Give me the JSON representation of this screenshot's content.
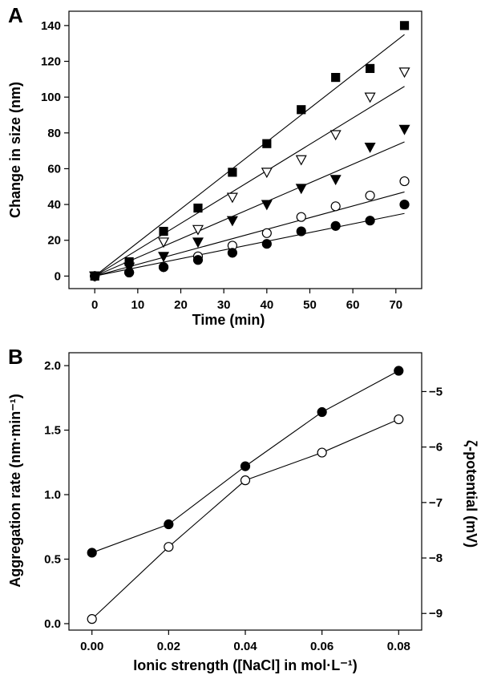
{
  "chart_data": [
    {
      "panel": "A",
      "type": "scatter",
      "xlabel": "Time (min)",
      "ylabel": "Change in size (nm)",
      "xlim": [
        -6,
        76
      ],
      "ylim": [
        -7,
        148
      ],
      "xticks": [
        0,
        10,
        20,
        30,
        40,
        50,
        60,
        70
      ],
      "yticks": [
        0,
        20,
        40,
        60,
        80,
        100,
        120,
        140
      ],
      "series": [
        {
          "name": "filled-square",
          "marker": "square-filled",
          "points": [
            [
              0,
              0
            ],
            [
              8,
              8
            ],
            [
              16,
              25
            ],
            [
              24,
              38
            ],
            [
              32,
              58
            ],
            [
              40,
              74
            ],
            [
              48,
              93
            ],
            [
              56,
              111
            ],
            [
              64,
              116
            ],
            [
              72,
              140
            ]
          ],
          "fit": [
            [
              0,
              0
            ],
            [
              72,
              135
            ]
          ]
        },
        {
          "name": "open-triangle-down",
          "marker": "triangle-down-open",
          "points": [
            [
              0,
              0
            ],
            [
              8,
              5
            ],
            [
              16,
              19
            ],
            [
              24,
              26
            ],
            [
              32,
              44
            ],
            [
              40,
              58
            ],
            [
              48,
              65
            ],
            [
              56,
              79
            ],
            [
              64,
              100
            ],
            [
              72,
              114
            ]
          ],
          "fit": [
            [
              0,
              0
            ],
            [
              72,
              106
            ]
          ]
        },
        {
          "name": "filled-triangle-down",
          "marker": "triangle-down-filled",
          "points": [
            [
              0,
              0
            ],
            [
              8,
              5
            ],
            [
              16,
              11
            ],
            [
              24,
              19
            ],
            [
              32,
              31
            ],
            [
              40,
              40
            ],
            [
              48,
              49
            ],
            [
              56,
              54
            ],
            [
              64,
              72
            ],
            [
              72,
              82
            ]
          ],
          "fit": [
            [
              0,
              0
            ],
            [
              72,
              75
            ]
          ]
        },
        {
          "name": "open-circle",
          "marker": "circle-open",
          "points": [
            [
              0,
              0
            ],
            [
              8,
              2
            ],
            [
              16,
              5
            ],
            [
              24,
              11
            ],
            [
              32,
              17
            ],
            [
              40,
              24
            ],
            [
              48,
              33
            ],
            [
              56,
              39
            ],
            [
              64,
              45
            ],
            [
              72,
              53
            ]
          ],
          "fit": [
            [
              0,
              0
            ],
            [
              72,
              47
            ]
          ]
        },
        {
          "name": "filled-circle",
          "marker": "circle-filled",
          "points": [
            [
              0,
              0
            ],
            [
              8,
              2
            ],
            [
              16,
              5
            ],
            [
              24,
              9
            ],
            [
              32,
              13
            ],
            [
              40,
              18
            ],
            [
              48,
              25
            ],
            [
              56,
              28
            ],
            [
              64,
              31
            ],
            [
              72,
              40
            ]
          ],
          "fit": [
            [
              0,
              0
            ],
            [
              72,
              35
            ]
          ]
        }
      ]
    },
    {
      "panel": "B",
      "type": "line",
      "xlabel": "Ionic strength ([NaCl] in mol·L⁻¹)",
      "ylabel": "Aggregation rate (nm·min⁻¹)",
      "y2label": "ζ-potential (mV)",
      "xlim": [
        -0.006,
        0.086
      ],
      "ylim": [
        -0.05,
        2.1
      ],
      "y2lim": [
        -9.3,
        -4.3
      ],
      "xticks": [
        0.0,
        0.02,
        0.04,
        0.06,
        0.08
      ],
      "xtick_labels": [
        "0.00",
        "0.02",
        "0.04",
        "0.06",
        "0.08"
      ],
      "yticks": [
        0.0,
        0.5,
        1.0,
        1.5,
        2.0
      ],
      "ytick_labels": [
        "0.0",
        "0.5",
        "1.0",
        "1.5",
        "2.0"
      ],
      "y2ticks": [
        -5,
        -6,
        -7,
        -8,
        -9
      ],
      "y2tick_labels": [
        "−5",
        "−6",
        "−7",
        "−8",
        "−9"
      ],
      "x": [
        0.0,
        0.02,
        0.04,
        0.06,
        0.08
      ],
      "series": [
        {
          "name": "Aggregation rate",
          "marker": "circle-filled",
          "axis": "left",
          "values": [
            0.55,
            0.77,
            1.22,
            1.64,
            1.96
          ]
        },
        {
          "name": "ζ-potential",
          "marker": "circle-open",
          "axis": "right",
          "values": [
            -9.1,
            -7.8,
            -6.6,
            -6.1,
            -5.5
          ]
        }
      ]
    }
  ],
  "panels": {
    "A": {
      "label": "A"
    },
    "B": {
      "label": "B"
    }
  }
}
